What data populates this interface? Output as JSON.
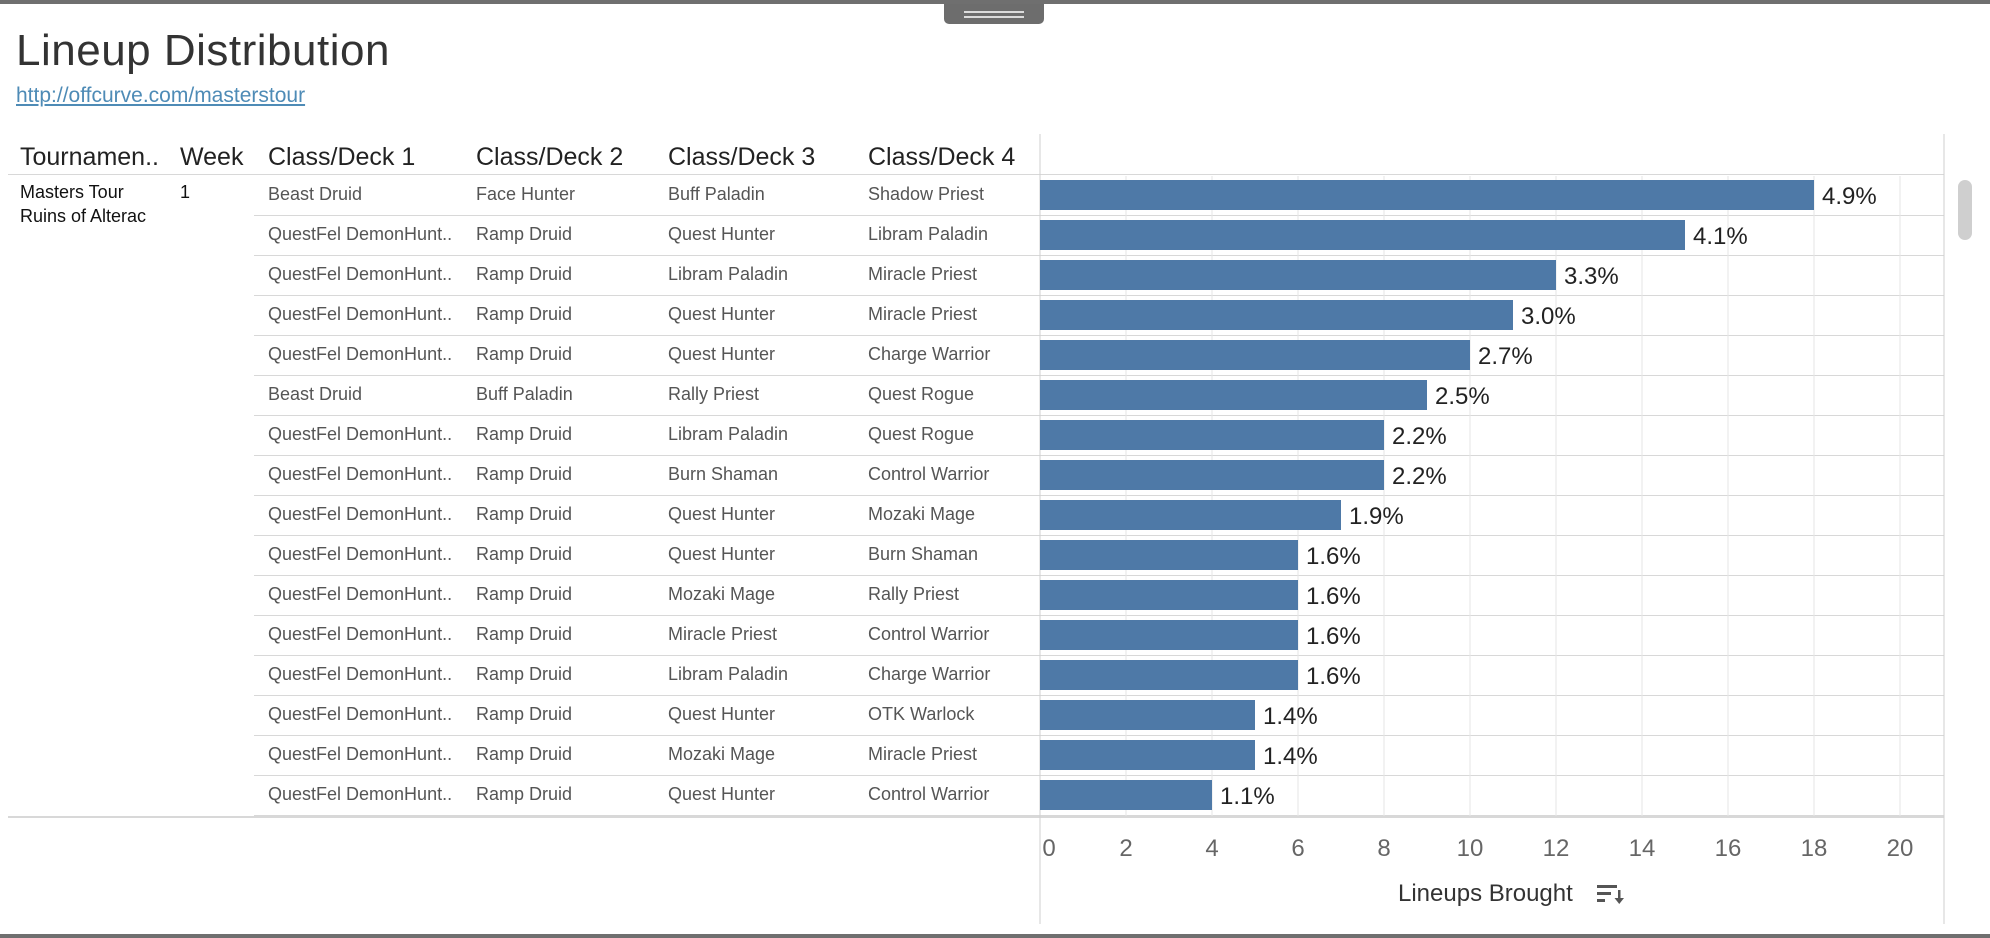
{
  "title": "Lineup Distribution",
  "link": "http://offcurve.com/masterstour",
  "columns": [
    "Tournamen..",
    "Week",
    "Class/Deck 1",
    "Class/Deck 2",
    "Class/Deck 3",
    "Class/Deck 4"
  ],
  "tournament": [
    "Masters Tour",
    "Ruins of Alterac"
  ],
  "week": "1",
  "rows": [
    [
      "Beast Druid",
      "Face Hunter",
      "Buff Paladin",
      "Shadow Priest"
    ],
    [
      "QuestFel DemonHunt..",
      "Ramp Druid",
      "Quest Hunter",
      "Libram Paladin"
    ],
    [
      "QuestFel DemonHunt..",
      "Ramp Druid",
      "Libram Paladin",
      "Miracle Priest"
    ],
    [
      "QuestFel DemonHunt..",
      "Ramp Druid",
      "Quest Hunter",
      "Miracle Priest"
    ],
    [
      "QuestFel DemonHunt..",
      "Ramp Druid",
      "Quest Hunter",
      "Charge Warrior"
    ],
    [
      "Beast Druid",
      "Buff Paladin",
      "Rally Priest",
      "Quest Rogue"
    ],
    [
      "QuestFel DemonHunt..",
      "Ramp Druid",
      "Libram Paladin",
      "Quest Rogue"
    ],
    [
      "QuestFel DemonHunt..",
      "Ramp Druid",
      "Burn Shaman",
      "Control Warrior"
    ],
    [
      "QuestFel DemonHunt..",
      "Ramp Druid",
      "Quest Hunter",
      "Mozaki Mage"
    ],
    [
      "QuestFel DemonHunt..",
      "Ramp Druid",
      "Quest Hunter",
      "Burn Shaman"
    ],
    [
      "QuestFel DemonHunt..",
      "Ramp Druid",
      "Mozaki Mage",
      "Rally Priest"
    ],
    [
      "QuestFel DemonHunt..",
      "Ramp Druid",
      "Miracle Priest",
      "Control Warrior"
    ],
    [
      "QuestFel DemonHunt..",
      "Ramp Druid",
      "Libram Paladin",
      "Charge Warrior"
    ],
    [
      "QuestFel DemonHunt..",
      "Ramp Druid",
      "Quest Hunter",
      "OTK Warlock"
    ],
    [
      "QuestFel DemonHunt..",
      "Ramp Druid",
      "Mozaki Mage",
      "Miracle Priest"
    ],
    [
      "QuestFel DemonHunt..",
      "Ramp Druid",
      "Quest Hunter",
      "Control Warrior"
    ]
  ],
  "colors": {
    "bar": "#4e79a7",
    "link": "#4e8bb6",
    "grid": "#e6e6e6"
  },
  "icons": {
    "sort": "sort-descending-icon"
  },
  "chart_data": {
    "type": "bar",
    "orientation": "horizontal",
    "xlabel": "Lineups Brought",
    "xlim": [
      0,
      21
    ],
    "xticks": [
      0,
      2,
      4,
      6,
      8,
      10,
      12,
      14,
      16,
      18,
      20
    ],
    "values": [
      18,
      15,
      12,
      11,
      10,
      9,
      8,
      8,
      7,
      6,
      6,
      6,
      6,
      5,
      5,
      4
    ],
    "labels": [
      "4.9%",
      "4.1%",
      "3.3%",
      "3.0%",
      "2.7%",
      "2.5%",
      "2.2%",
      "2.2%",
      "1.9%",
      "1.6%",
      "1.6%",
      "1.6%",
      "1.6%",
      "1.4%",
      "1.4%",
      "1.1%"
    ],
    "grid": true
  }
}
